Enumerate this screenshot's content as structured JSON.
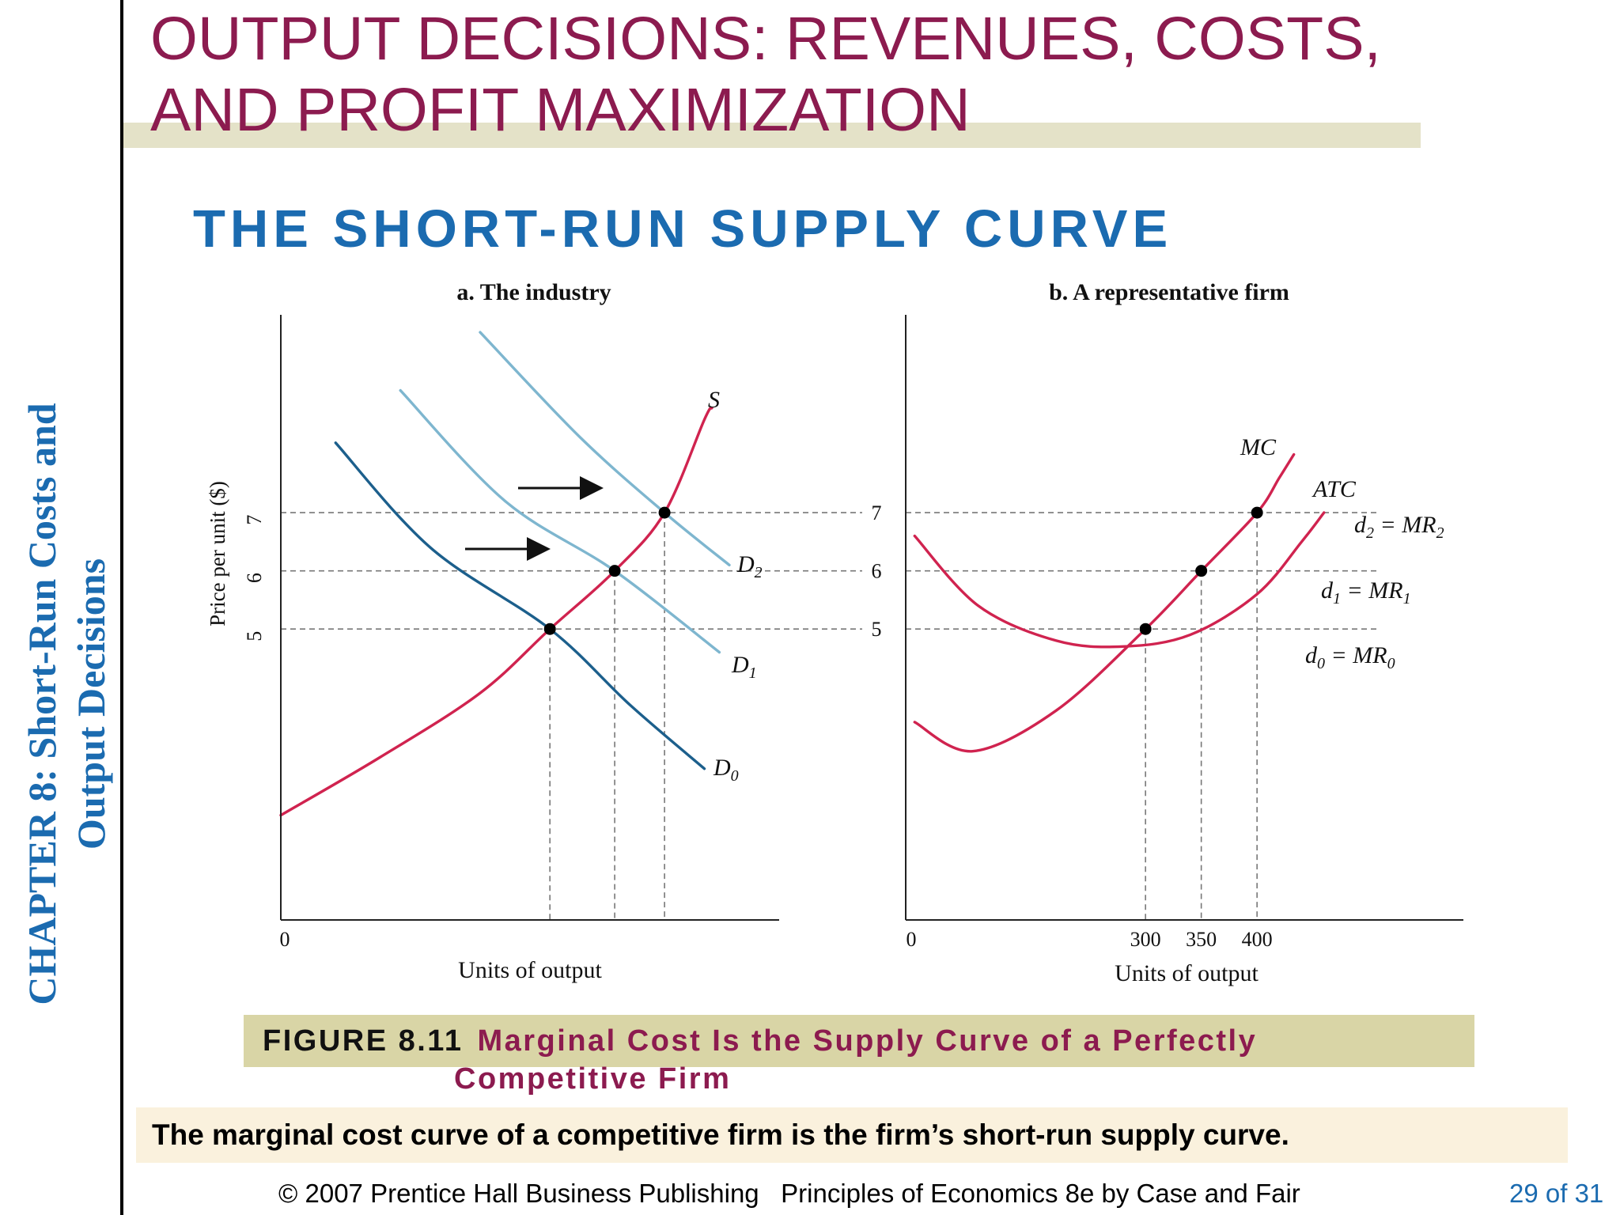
{
  "slide": {
    "title": "OUTPUT DECISIONS:  REVENUES, COSTS,\nAND PROFIT MAXIMIZATION",
    "subtitle": "THE SHORT-RUN SUPPLY CURVE",
    "chapter_line1": "CHAPTER 8:  Short-Run Costs and",
    "chapter_line2": "Output Decisions",
    "figure_number": "FIGURE 8.11",
    "figure_caption_line1": "Marginal Cost Is the Supply Curve of a Perfectly",
    "figure_caption_line2": "Competitive Firm",
    "note": "The marginal cost curve of a competitive firm is the firm’s short-run supply curve.",
    "footer": "© 2007 Prentice Hall Business Publishing   Principles of Economics 8e by Case and Fair",
    "page": "29 of 31"
  },
  "colors": {
    "title": "#8c1b4f",
    "subtitle": "#1b6bb0",
    "supply_cost_curves": "#d0234f",
    "d0": "#1c5f8c",
    "d1_d2": "#7eb6cf"
  },
  "chart_data": [
    {
      "type": "line",
      "title": "a. The industry",
      "xlabel": "Units of output",
      "ylabel": "Price per unit ($)",
      "x_origin_label": "0",
      "yticks": [
        5,
        6,
        7
      ],
      "ylim": [
        0,
        10.4
      ],
      "xlim": [
        0,
        100
      ],
      "annotations": [
        "→",
        "→"
      ],
      "equilibria": [
        {
          "x": 54,
          "y": 5
        },
        {
          "x": 67,
          "y": 6
        },
        {
          "x": 77,
          "y": 7
        }
      ],
      "series": [
        {
          "name": "S",
          "label_main": "S",
          "label_sub": "",
          "color": "#d0234f",
          "points": [
            [
              0,
              1.8
            ],
            [
              20,
              2.8
            ],
            [
              40,
              3.9
            ],
            [
              54,
              5
            ],
            [
              67,
              6
            ],
            [
              77,
              7
            ],
            [
              85,
              8.6
            ],
            [
              86.5,
              8.8
            ]
          ]
        },
        {
          "name": "D0",
          "label_main": "D",
          "label_sub": "0",
          "color": "#1c5f8c",
          "points": [
            [
              11,
              8.2
            ],
            [
              30,
              6.4
            ],
            [
              54,
              5
            ],
            [
              70,
              3.7
            ],
            [
              85,
              2.6
            ]
          ]
        },
        {
          "name": "D1",
          "label_main": "D",
          "label_sub": "1",
          "color": "#7eb6cf",
          "points": [
            [
              24,
              9.1
            ],
            [
              45,
              7.2
            ],
            [
              67,
              6
            ],
            [
              88,
              4.6
            ]
          ]
        },
        {
          "name": "D2",
          "label_main": "D",
          "label_sub": "2",
          "color": "#7eb6cf",
          "points": [
            [
              40,
              10.1
            ],
            [
              60,
              8.3
            ],
            [
              77,
              7
            ],
            [
              90,
              6.1
            ]
          ]
        }
      ]
    },
    {
      "type": "line",
      "title": "b. A representative firm",
      "xlabel": "Units of output",
      "x_origin_label": "0",
      "xticks": [
        300,
        350,
        400
      ],
      "yticks": [
        5,
        6,
        7
      ],
      "ylim": [
        0,
        10.4
      ],
      "xlim": [
        85,
        585
      ],
      "equilibria": [
        {
          "x": 300,
          "y": 5
        },
        {
          "x": 350,
          "y": 6
        },
        {
          "x": 400,
          "y": 7
        }
      ],
      "series": [
        {
          "name": "MC",
          "label_main": "MC",
          "label_sub": "",
          "color": "#d0234f",
          "points": [
            [
              93,
              3.4
            ],
            [
              145,
              2.9
            ],
            [
              220,
              3.6
            ],
            [
              300,
              5
            ],
            [
              350,
              6
            ],
            [
              400,
              7
            ],
            [
              420,
              7.6
            ],
            [
              433,
              8.0
            ]
          ]
        },
        {
          "name": "ATC",
          "label_main": "ATC",
          "label_sub": "",
          "color": "#d0234f",
          "points": [
            [
              93,
              6.6
            ],
            [
              150,
              5.4
            ],
            [
              220,
              4.8
            ],
            [
              280,
              4.7
            ],
            [
              340,
              4.9
            ],
            [
              400,
              5.6
            ],
            [
              440,
              6.5
            ],
            [
              460,
              7.0
            ]
          ]
        },
        {
          "name": "d0 = MR0",
          "label_main": "d",
          "label_sub": "0",
          "label_mid": " = MR",
          "label_sub2": "0",
          "color": "#888888",
          "points": [
            [
              85,
              5
            ],
            [
              460,
              5
            ]
          ]
        },
        {
          "name": "d1 = MR1",
          "label_main": "d",
          "label_sub": "1",
          "label_mid": " = MR",
          "label_sub2": "1",
          "color": "#888888",
          "points": [
            [
              85,
              6
            ],
            [
              460,
              6
            ]
          ]
        },
        {
          "name": "d2 = MR2",
          "label_main": "d",
          "label_sub": "2",
          "label_mid": " = MR",
          "label_sub2": "2",
          "color": "#888888",
          "points": [
            [
              85,
              7
            ],
            [
              460,
              7
            ]
          ]
        }
      ]
    }
  ]
}
